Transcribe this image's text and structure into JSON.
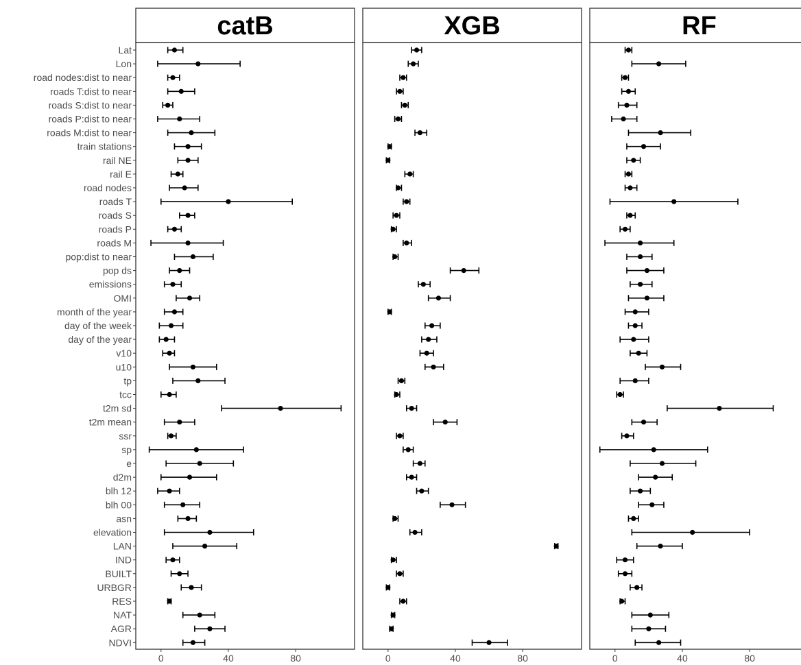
{
  "chart_data": {
    "type": "dot-errorbar",
    "grid": false,
    "variables": [
      "Lat",
      "Lon",
      "road nodes:dist to near",
      "roads T:dist to near",
      "roads S:dist to near",
      "roads P:dist to near",
      "roads M:dist to near",
      "train stations",
      "rail NE",
      "rail E",
      "road nodes",
      "roads T",
      "roads S",
      "roads P",
      "roads M",
      "pop:dist to near",
      "pop ds",
      "emissions",
      "OMI",
      "month of the year",
      "day of the week",
      "day of the year",
      "v10",
      "u10",
      "tp",
      "tcc",
      "t2m sd",
      "t2m mean",
      "ssr",
      "sp",
      "e",
      "d2m",
      "blh 12",
      "blh 00",
      "asn",
      "elevation",
      "LAN",
      "IND",
      "BUILT",
      "URBGR",
      "RES",
      "NAT",
      "AGR",
      "NDVI"
    ],
    "xlim": [
      -15,
      115
    ],
    "xticks": [
      0,
      40,
      80
    ],
    "panels": [
      {
        "name": "catB",
        "mean": [
          8,
          22,
          7,
          12,
          4,
          11,
          18,
          16,
          16,
          10,
          14,
          40,
          16,
          8,
          16,
          19,
          11,
          7,
          17,
          8,
          6,
          3,
          5,
          19,
          22,
          5,
          71,
          11,
          6,
          21,
          23,
          17,
          5,
          13,
          16,
          29,
          26,
          7,
          11,
          18,
          5,
          23,
          29,
          19
        ],
        "lower": [
          4,
          -2,
          4,
          4,
          1,
          -2,
          4,
          8,
          10,
          6,
          5,
          0,
          11,
          4,
          -6,
          8,
          5,
          2,
          9,
          2,
          -1,
          -1,
          1,
          5,
          7,
          0,
          36,
          2,
          4,
          -7,
          3,
          0,
          -2,
          2,
          10,
          2,
          7,
          3,
          6,
          12,
          4,
          13,
          20,
          13
        ],
        "upper": [
          13,
          47,
          11,
          20,
          7,
          23,
          32,
          24,
          22,
          13,
          22,
          78,
          20,
          12,
          37,
          31,
          17,
          12,
          23,
          13,
          13,
          8,
          8,
          33,
          38,
          9,
          107,
          20,
          9,
          49,
          43,
          33,
          11,
          23,
          21,
          55,
          45,
          11,
          16,
          24,
          6,
          32,
          38,
          26
        ]
      },
      {
        "name": "XGB",
        "mean": [
          17,
          15,
          9,
          7,
          10,
          6,
          19,
          1,
          0,
          13,
          6,
          11,
          5,
          3,
          11,
          4,
          45,
          21,
          30,
          1,
          26,
          24,
          23,
          27,
          8,
          5,
          14,
          34,
          7,
          12,
          19,
          14,
          20,
          38,
          4,
          16,
          100,
          3,
          7,
          0,
          9,
          3,
          2,
          60
        ],
        "lower": [
          14,
          12,
          7,
          5,
          8,
          4,
          16,
          0,
          -1,
          10,
          5,
          9,
          3,
          2,
          9,
          3,
          37,
          18,
          24,
          0,
          22,
          20,
          19,
          22,
          6,
          4,
          11,
          27,
          5,
          9,
          15,
          11,
          17,
          31,
          3,
          13,
          99,
          2,
          5,
          -1,
          7,
          2,
          1,
          50
        ],
        "upper": [
          20,
          18,
          11,
          9,
          12,
          8,
          23,
          2,
          1,
          15,
          8,
          13,
          7,
          5,
          14,
          6,
          54,
          25,
          37,
          2,
          31,
          29,
          27,
          33,
          10,
          7,
          17,
          41,
          9,
          15,
          22,
          17,
          24,
          46,
          6,
          20,
          101,
          5,
          9,
          1,
          11,
          4,
          3,
          71
        ]
      },
      {
        "name": "RF",
        "mean": [
          8,
          26,
          6,
          8,
          7,
          5,
          27,
          17,
          11,
          8,
          9,
          35,
          9,
          6,
          15,
          15,
          19,
          15,
          19,
          12,
          12,
          11,
          14,
          28,
          12,
          3,
          62,
          17,
          7,
          23,
          28,
          24,
          15,
          22,
          11,
          46,
          27,
          6,
          6,
          13,
          4,
          21,
          20,
          26
        ],
        "lower": [
          6,
          10,
          4,
          4,
          2,
          -2,
          8,
          7,
          7,
          6,
          6,
          -3,
          7,
          3,
          -6,
          7,
          7,
          9,
          8,
          6,
          8,
          3,
          9,
          18,
          3,
          1,
          31,
          10,
          4,
          -9,
          9,
          14,
          9,
          14,
          8,
          10,
          13,
          1,
          2,
          9,
          3,
          10,
          10,
          12
        ],
        "upper": [
          10,
          42,
          8,
          12,
          13,
          13,
          45,
          27,
          15,
          10,
          13,
          73,
          12,
          9,
          35,
          22,
          29,
          22,
          29,
          20,
          16,
          20,
          19,
          39,
          20,
          5,
          94,
          25,
          11,
          55,
          48,
          34,
          21,
          29,
          14,
          80,
          40,
          11,
          10,
          16,
          6,
          32,
          30,
          39
        ]
      }
    ]
  }
}
